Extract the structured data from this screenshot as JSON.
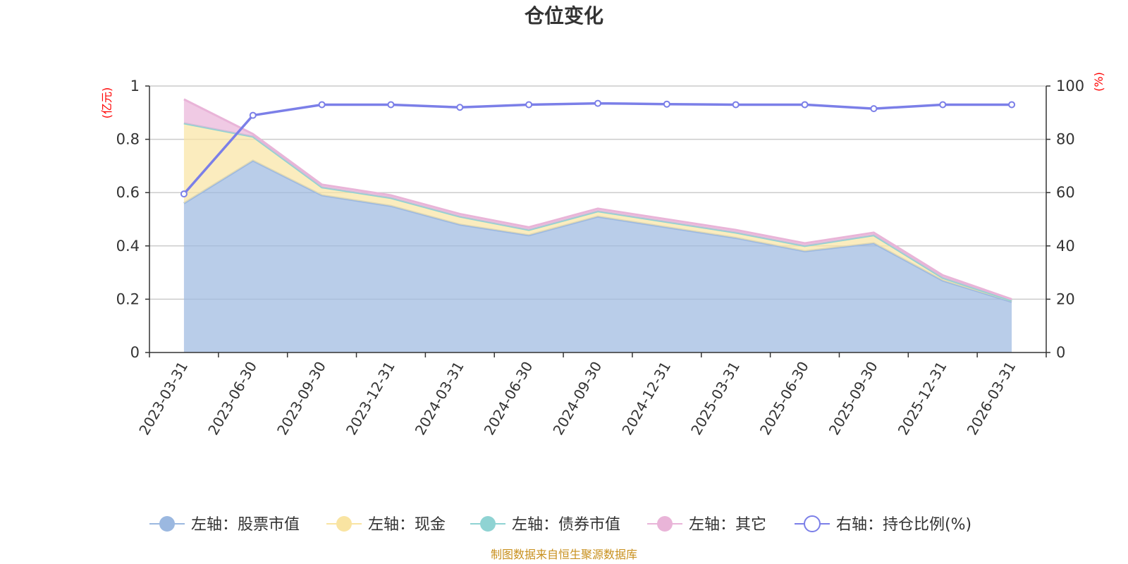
{
  "chart_data": {
    "type": "area",
    "title": "仓位变化",
    "categories": [
      "2023-03-31",
      "2023-06-30",
      "2023-09-30",
      "2023-12-31",
      "2024-03-31",
      "2024-06-30",
      "2024-09-30",
      "2024-12-31",
      "2025-03-31",
      "2025-06-30",
      "2025-09-30",
      "2025-12-31",
      "2026-03-31"
    ],
    "left_axis": {
      "unit": "(亿元)",
      "ylim": [
        0,
        1
      ],
      "ticks": [
        "0",
        "0.2",
        "0.4",
        "0.6",
        "0.8",
        "1"
      ],
      "tick_values": [
        0,
        0.2,
        0.4,
        0.6,
        0.8,
        1.0
      ]
    },
    "right_axis": {
      "unit": "(%)",
      "ylim": [
        0,
        100
      ],
      "ticks": [
        "0",
        "20",
        "40",
        "60",
        "80",
        "100"
      ],
      "tick_values": [
        0,
        20,
        40,
        60,
        80,
        100
      ]
    },
    "series": [
      {
        "name": "左轴：股票市值",
        "axis": "left",
        "stacked": true,
        "color": "#9bb8e0",
        "values": [
          0.56,
          0.72,
          0.59,
          0.55,
          0.48,
          0.44,
          0.51,
          0.47,
          0.43,
          0.38,
          0.41,
          0.27,
          0.19
        ]
      },
      {
        "name": "左轴：现金",
        "axis": "left",
        "stacked": true,
        "color": "#f9e4a2",
        "values": [
          0.3,
          0.09,
          0.03,
          0.03,
          0.03,
          0.02,
          0.02,
          0.02,
          0.02,
          0.02,
          0.03,
          0.01,
          0.005
        ]
      },
      {
        "name": "左轴：债券市值",
        "axis": "left",
        "stacked": true,
        "color": "#8fd3d3",
        "values": [
          0,
          0,
          0,
          0,
          0,
          0,
          0,
          0,
          0,
          0,
          0,
          0,
          0
        ]
      },
      {
        "name": "左轴：其它",
        "axis": "left",
        "stacked": true,
        "color": "#e9b4d8",
        "values": [
          0.09,
          0.01,
          0.01,
          0.01,
          0.01,
          0.01,
          0.01,
          0.01,
          0.01,
          0.01,
          0.01,
          0.01,
          0.005
        ]
      },
      {
        "name": "右轴：持仓比例(%)",
        "axis": "right",
        "type": "line",
        "color": "#7b7fe8",
        "values": [
          59.5,
          89,
          93,
          93,
          92,
          93,
          93.5,
          93.2,
          93,
          93,
          91.5,
          93,
          93
        ]
      }
    ],
    "legend_position": "bottom",
    "source": "制图数据来自恒生聚源数据库"
  }
}
